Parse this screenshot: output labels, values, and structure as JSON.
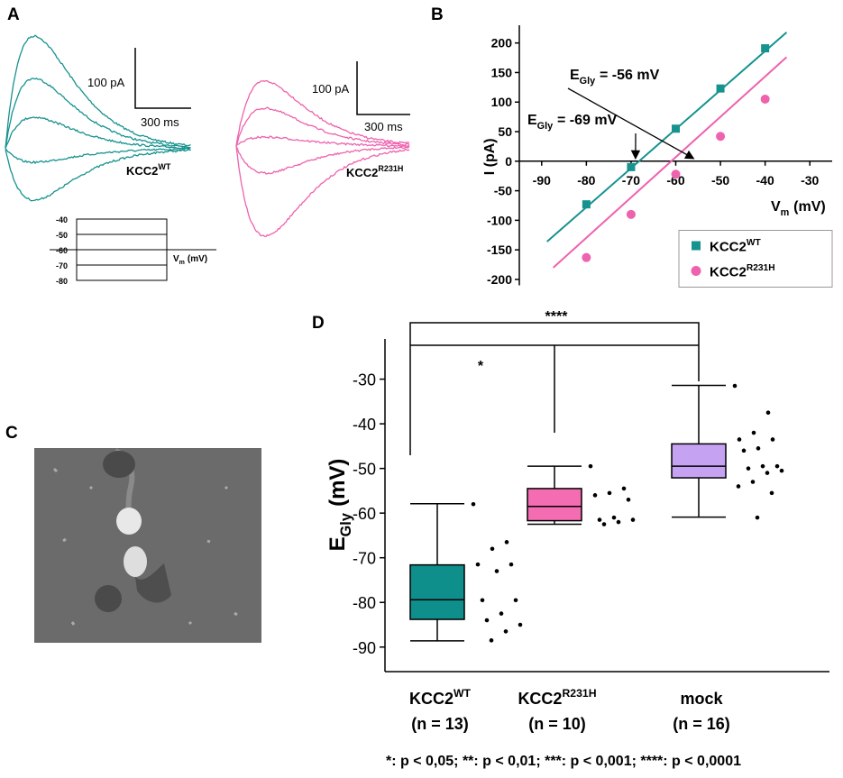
{
  "panels": {
    "a": "A",
    "b": "B",
    "c": "C",
    "d": "D"
  },
  "panel_a": {
    "wt_scale_current": "100 pA",
    "wt_scale_time": "300 ms",
    "wt_label": "KCC2",
    "wt_label_sup": "WT",
    "mut_scale_current": "100 pA",
    "mut_scale_time": "300 ms",
    "mut_label": "KCC2",
    "mut_label_sup": "R231H",
    "protocol_levels": [
      -40,
      -50,
      -60,
      -70,
      -80
    ],
    "protocol_axis": "V",
    "protocol_axis_sub": "m",
    "protocol_axis_unit": "(mV)"
  },
  "chart_data": [
    {
      "type": "scatter",
      "y_label": "I (pA)",
      "x_label": "V",
      "x_label_sub": "m",
      "x_label_unit": "(mV)",
      "xlim": [
        -95,
        -25
      ],
      "ylim": [
        -210,
        230
      ],
      "xticks": [
        -90,
        -80,
        -70,
        -60,
        -50,
        -40,
        -30
      ],
      "yticks": [
        -200,
        -150,
        -100,
        -50,
        0,
        50,
        100,
        150,
        200
      ],
      "legend": "bottom-right",
      "series": [
        {
          "name": "KCC2",
          "name_sup": "WT",
          "color": "#16928f",
          "marker": "square",
          "x": [
            -80,
            -70,
            -60,
            -50,
            -40
          ],
          "values": [
            -73,
            -10,
            55,
            123,
            191
          ],
          "fit_x": [
            -88.8,
            -35.2
          ],
          "fit_values": [
            -136,
            218
          ]
        },
        {
          "name": "KCC2",
          "name_sup": "R231H",
          "color": "#ee62ae",
          "marker": "circle",
          "x": [
            -80,
            -70,
            -60,
            -50,
            -40
          ],
          "values": [
            -163,
            -90,
            -22,
            42,
            105
          ],
          "fit_x": [
            -87.4,
            -35.2
          ],
          "fit_values": [
            -180,
            176
          ]
        }
      ],
      "annotations": [
        {
          "label": "E",
          "label_sub": "Gly",
          "label_rest": "= -56 mV",
          "x": -56,
          "y": 0
        },
        {
          "label": "E",
          "label_sub": "Gly",
          "label_rest": "= -69 mV",
          "x": -69,
          "y": 0
        }
      ]
    },
    {
      "type": "box",
      "y_label": "E",
      "y_label_sub": "Gly",
      "y_label_unit": "(mV)",
      "ylim": [
        -95.5,
        -21
      ],
      "yticks": [
        -90,
        -80,
        -70,
        -60,
        -50,
        -40,
        -30
      ],
      "categories": [
        "KCC2",
        "KCC2",
        "mock"
      ],
      "category_superscripts": [
        "WT",
        "R231H",
        null
      ],
      "category_counts": [
        "(n = 13)",
        "(n = 10)",
        "(n = 16)"
      ],
      "boxes": [
        {
          "color": "#0e8f8c",
          "whisker_low": -88.6,
          "q1": -83.8,
          "median": -79.4,
          "q3": -71.6,
          "whisker_high": -57.9,
          "points": [
            -58,
            -66.5,
            -68,
            -71.5,
            -71.5,
            -73,
            -79.5,
            -79.5,
            -82.5,
            -84,
            -85,
            -86.5,
            -88.5
          ]
        },
        {
          "color": "#f46cb2",
          "whisker_low": -62.5,
          "q1": -61.7,
          "median": -58.5,
          "q3": -54.5,
          "whisker_high": -49.5,
          "points": [
            -49.5,
            -54.5,
            -55.5,
            -56,
            -57,
            -61,
            -61.5,
            -61.5,
            -62,
            -62.5
          ]
        },
        {
          "color": "#c5a2f2",
          "whisker_low": -60.9,
          "q1": -52.1,
          "median": -49.5,
          "q3": -44.5,
          "whisker_high": -31.4,
          "points": [
            -31.5,
            -37.5,
            -42,
            -43.5,
            -43.5,
            -45.5,
            -46,
            -49.5,
            -49.5,
            -50,
            -50.5,
            -51,
            -53,
            -54,
            -55.5,
            -61
          ]
        }
      ],
      "significance_labels": [
        "****",
        "*"
      ]
    }
  ],
  "footnote": "*: p < 0,05; **: p < 0,01; ***: p < 0,001; ****: p < 0,0001"
}
